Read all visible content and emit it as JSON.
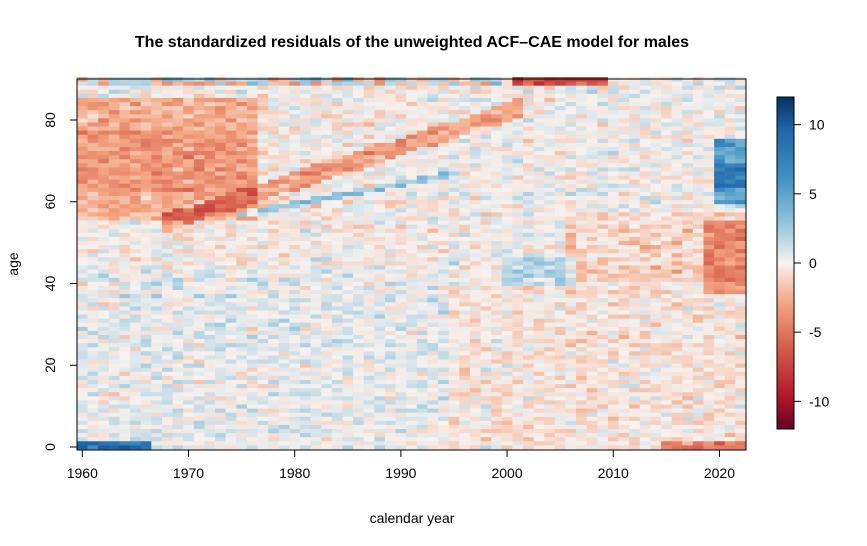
{
  "chart_data": {
    "type": "heatmap",
    "title": "The standardized residuals of the unweighted ACF–CAE model for males",
    "xlabel": "calendar year",
    "ylabel": "age",
    "x_range": [
      1960,
      2022
    ],
    "y_range": [
      0,
      90
    ],
    "x_ticks": [
      "1960",
      "1970",
      "1980",
      "1990",
      "2000",
      "2010",
      "2020"
    ],
    "y_ticks": [
      "0",
      "20",
      "40",
      "60",
      "80"
    ],
    "colorbar": {
      "range": [
        -12,
        12
      ],
      "ticks": [
        "10",
        "5",
        "0",
        "-5",
        "-10"
      ],
      "low_color": "#67001f",
      "mid_color": "#f7f2ef",
      "high_color": "#053061"
    },
    "features": [
      {
        "kind": "diagonal_band_negative",
        "from_year": 1968,
        "from_age": 55,
        "to_year": 2000,
        "to_age": 82
      },
      {
        "kind": "diagonal_band_positive",
        "from_year": 1975,
        "from_age": 57,
        "to_year": 1995,
        "to_age": 67
      },
      {
        "kind": "negative_block",
        "years": [
          1960,
          1977
        ],
        "ages": [
          55,
          85
        ]
      },
      {
        "kind": "positive_block",
        "years": [
          2020,
          2022
        ],
        "ages": [
          60,
          75
        ]
      },
      {
        "kind": "negative_block",
        "years": [
          2019,
          2022
        ],
        "ages": [
          38,
          55
        ]
      },
      {
        "kind": "positive_strip",
        "years": [
          1960,
          1966
        ],
        "ages": [
          0,
          1
        ]
      },
      {
        "kind": "negative_strip",
        "years": [
          2001,
          2009
        ],
        "ages": [
          89,
          90
        ]
      },
      {
        "kind": "positive_block",
        "years": [
          2000,
          2006
        ],
        "ages": [
          40,
          46
        ]
      }
    ]
  }
}
